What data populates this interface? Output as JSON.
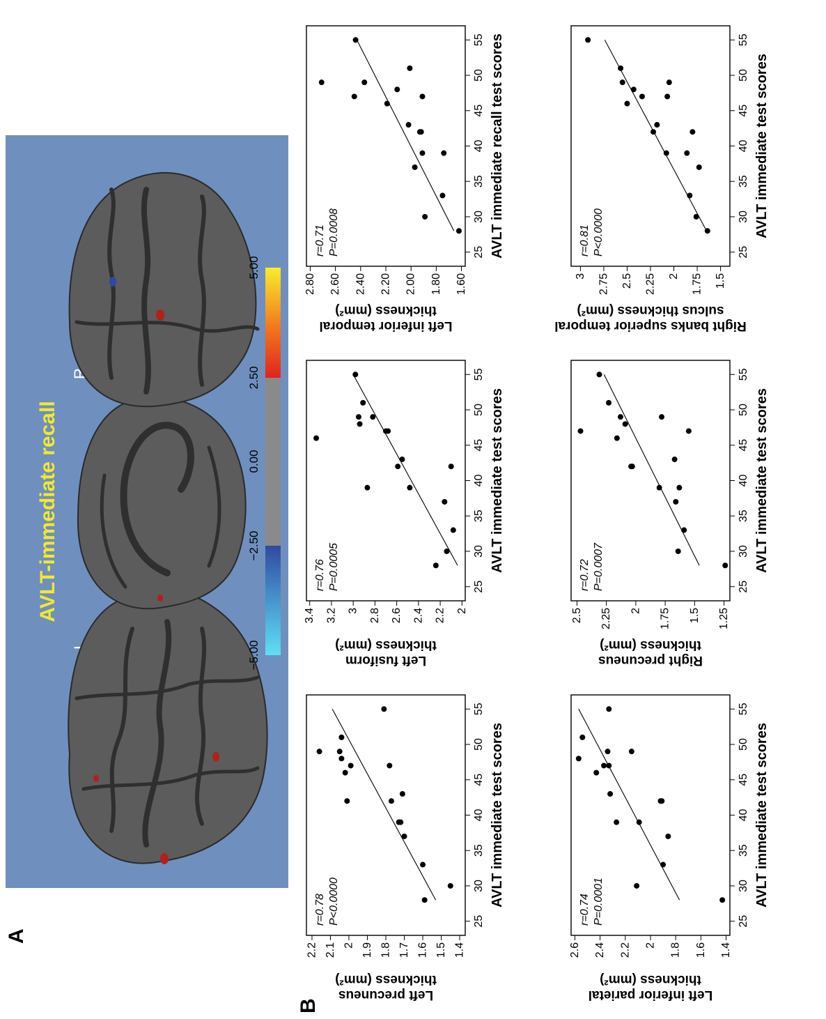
{
  "figure": {
    "panel_a_label": "A",
    "panel_b_label": "B"
  },
  "panel_a": {
    "title": "AVLT-immediate recall",
    "left_label": "L",
    "right_label": "R",
    "colorbar_ticks": [
      "−5.00",
      "−2.50",
      "0.00",
      "2.50",
      "5.00"
    ],
    "colors": {
      "background": "#6f8fbf",
      "title": "#f2ea2a",
      "brain": "#5c5c5c",
      "sulcus": "#2f2f2f",
      "blob_positive": "#b3201a",
      "blob_negative": "#2e47a8"
    }
  },
  "chart_data": [
    {
      "type": "scatter",
      "xlabel": "AVLT immediate test scores",
      "ylabel_line1": "Left precuneus",
      "ylabel_line2": "thickness (mm²)",
      "r_text": "r=0.78",
      "p_text": "P<0.0000",
      "xlim": [
        23,
        57
      ],
      "ylim": [
        1.37,
        2.23
      ],
      "xticks": [
        25,
        30,
        35,
        40,
        45,
        50,
        55
      ],
      "yticks": [
        1.4,
        1.5,
        1.6,
        1.7,
        1.8,
        1.9,
        2.0,
        2.1,
        2.2
      ],
      "ytick_labels": [
        "1.4",
        "1.5",
        "1.6",
        "1.7",
        "1.8",
        "1.9",
        "2",
        "2.1",
        "2.2"
      ],
      "points": [
        [
          28,
          1.59
        ],
        [
          30,
          1.45
        ],
        [
          33,
          1.6
        ],
        [
          37,
          1.7
        ],
        [
          39,
          1.72
        ],
        [
          39,
          1.73
        ],
        [
          42,
          1.77
        ],
        [
          42,
          2.01
        ],
        [
          43,
          1.71
        ],
        [
          46,
          2.02
        ],
        [
          47,
          1.99
        ],
        [
          47,
          1.78
        ],
        [
          48,
          2.04
        ],
        [
          49,
          2.05
        ],
        [
          49,
          2.16
        ],
        [
          51,
          2.04
        ],
        [
          55,
          1.81
        ]
      ],
      "fit": [
        [
          28,
          1.53
        ],
        [
          55,
          2.09
        ]
      ]
    },
    {
      "type": "scatter",
      "xlabel": "AVLT immediate test scores",
      "ylabel_line1": "Left fusiform",
      "ylabel_line2": "thickness (mm²)",
      "r_text": "r=0.76",
      "p_text": "P=0.0005",
      "xlim": [
        23,
        57
      ],
      "ylim": [
        1.97,
        3.43
      ],
      "xticks": [
        25,
        30,
        35,
        40,
        45,
        50,
        55
      ],
      "yticks": [
        2.0,
        2.2,
        2.4,
        2.6,
        2.8,
        3.0,
        3.2,
        3.4
      ],
      "ytick_labels": [
        "2",
        "2.2",
        "2.4",
        "2.6",
        "2.8",
        "3",
        "3.2",
        "3.4"
      ],
      "points": [
        [
          28,
          2.24
        ],
        [
          30,
          2.14
        ],
        [
          33,
          2.08
        ],
        [
          37,
          2.16
        ],
        [
          39,
          2.87
        ],
        [
          39,
          2.48
        ],
        [
          42,
          2.59
        ],
        [
          42,
          2.1
        ],
        [
          43,
          2.55
        ],
        [
          46,
          3.34
        ],
        [
          47,
          2.68
        ],
        [
          47,
          2.7
        ],
        [
          48,
          2.94
        ],
        [
          49,
          2.95
        ],
        [
          49,
          2.82
        ],
        [
          51,
          2.91
        ],
        [
          55,
          2.98
        ]
      ],
      "fit": [
        [
          28,
          2.04
        ],
        [
          55,
          3.0
        ]
      ]
    },
    {
      "type": "scatter",
      "xlabel": "AVLT immediate recall test scores",
      "ylabel_line1": "Left inferior temporal",
      "ylabel_line2": "thickness (mm²)",
      "r_text": "r=0.71",
      "p_text": "P=0.0008",
      "xlim": [
        23,
        57
      ],
      "ylim": [
        1.57,
        2.83
      ],
      "xticks": [
        25,
        30,
        35,
        40,
        45,
        50,
        55
      ],
      "yticks": [
        1.6,
        1.8,
        2.0,
        2.2,
        2.4,
        2.6,
        2.8
      ],
      "ytick_labels": [
        "1.60",
        "1.80",
        "2.00",
        "2.20",
        "2.40",
        "2.60",
        "2.80"
      ],
      "points": [
        [
          28,
          1.62
        ],
        [
          30,
          1.89
        ],
        [
          33,
          1.75
        ],
        [
          37,
          1.97
        ],
        [
          39,
          1.91
        ],
        [
          39,
          1.74
        ],
        [
          42,
          1.93
        ],
        [
          42,
          1.92
        ],
        [
          43,
          2.02
        ],
        [
          46,
          2.19
        ],
        [
          47,
          1.91
        ],
        [
          47,
          2.45
        ],
        [
          48,
          2.11
        ],
        [
          49,
          2.71
        ],
        [
          49,
          2.37
        ],
        [
          51,
          2.01
        ],
        [
          55,
          2.44
        ]
      ],
      "fit": [
        [
          28,
          1.66
        ],
        [
          55,
          2.43
        ]
      ]
    },
    {
      "type": "scatter",
      "xlabel": "AVLT immediate test scores",
      "ylabel_line1": "Left inferior parietal",
      "ylabel_line2": "thickness (mm²)",
      "r_text": "r=0.74",
      "p_text": "P=0.0001",
      "xlim": [
        23,
        57
      ],
      "ylim": [
        1.37,
        2.63
      ],
      "xticks": [
        25,
        30,
        35,
        40,
        45,
        50,
        55
      ],
      "yticks": [
        1.4,
        1.6,
        1.8,
        2.0,
        2.2,
        2.4,
        2.6
      ],
      "ytick_labels": [
        "1.4",
        "1.6",
        "1.8",
        "2",
        "2.2",
        "2.4",
        "2.6"
      ],
      "points": [
        [
          28,
          1.43
        ],
        [
          30,
          2.11
        ],
        [
          33,
          1.9
        ],
        [
          37,
          1.86
        ],
        [
          39,
          2.27
        ],
        [
          39,
          2.09
        ],
        [
          42,
          1.91
        ],
        [
          42,
          1.92
        ],
        [
          43,
          2.32
        ],
        [
          46,
          2.43
        ],
        [
          47,
          2.33
        ],
        [
          47,
          2.37
        ],
        [
          48,
          2.57
        ],
        [
          49,
          2.34
        ],
        [
          49,
          2.15
        ],
        [
          51,
          2.54
        ],
        [
          55,
          2.33
        ]
      ],
      "fit": [
        [
          28,
          1.77
        ],
        [
          55,
          2.57
        ]
      ]
    },
    {
      "type": "scatter",
      "xlabel": "AVLT immediate test scores",
      "ylabel_line1": "Right precuneus",
      "ylabel_line2": "thickness (mm²)",
      "r_text": "r=0.72",
      "p_text": "P=0.0007",
      "xlim": [
        23,
        57
      ],
      "ylim": [
        1.2,
        2.55
      ],
      "xticks": [
        25,
        30,
        35,
        40,
        45,
        50,
        55
      ],
      "yticks": [
        1.25,
        1.5,
        1.75,
        2.0,
        2.25,
        2.5
      ],
      "ytick_labels": [
        "1.25",
        "1.5",
        "1.75",
        "2",
        "2.25",
        "2.5"
      ],
      "points": [
        [
          28,
          1.24
        ],
        [
          30,
          1.64
        ],
        [
          33,
          1.59
        ],
        [
          37,
          1.66
        ],
        [
          39,
          1.8
        ],
        [
          39,
          1.63
        ],
        [
          42,
          2.03
        ],
        [
          42,
          2.04
        ],
        [
          43,
          1.67
        ],
        [
          46,
          2.16
        ],
        [
          47,
          1.55
        ],
        [
          47,
          2.47
        ],
        [
          48,
          2.09
        ],
        [
          49,
          2.13
        ],
        [
          49,
          1.78
        ],
        [
          51,
          2.23
        ],
        [
          55,
          2.31
        ]
      ],
      "fit": [
        [
          28,
          1.46
        ],
        [
          55,
          2.27
        ]
      ]
    },
    {
      "type": "scatter",
      "xlabel": "AVLT immediate test scores",
      "ylabel_line1": "Right banks superior temporal",
      "ylabel_line2": "sulcus  thickness (mm²)",
      "r_text": "r=0.81",
      "p_text": "P<0.0000",
      "xlim": [
        23,
        57
      ],
      "ylim": [
        1.4,
        3.1
      ],
      "xticks": [
        25,
        30,
        35,
        40,
        45,
        50,
        55
      ],
      "yticks": [
        1.5,
        1.75,
        2.0,
        2.25,
        2.5,
        2.75,
        3.0
      ],
      "ytick_labels": [
        "1.5",
        "1.75",
        "2",
        "2.25",
        "2.5",
        "2.75",
        "3"
      ],
      "points": [
        [
          28,
          1.64
        ],
        [
          30,
          1.76
        ],
        [
          33,
          1.83
        ],
        [
          37,
          1.73
        ],
        [
          39,
          1.86
        ],
        [
          39,
          2.08
        ],
        [
          42,
          1.8
        ],
        [
          42,
          2.22
        ],
        [
          43,
          2.18
        ],
        [
          46,
          2.5
        ],
        [
          47,
          2.07
        ],
        [
          47,
          2.34
        ],
        [
          48,
          2.43
        ],
        [
          49,
          2.55
        ],
        [
          49,
          2.05
        ],
        [
          51,
          2.57
        ],
        [
          55,
          2.92
        ]
      ],
      "fit": [
        [
          28,
          1.65
        ],
        [
          55,
          2.74
        ]
      ]
    }
  ]
}
